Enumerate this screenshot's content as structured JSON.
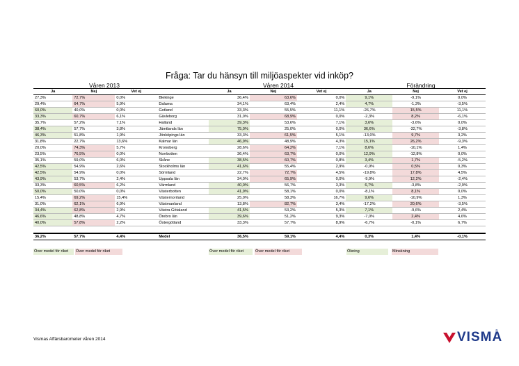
{
  "title": "Fråga: Tar du hänsyn till miljöaspekter vid inköp?",
  "groups": {
    "g1": "Våren 2013",
    "g2": "Våren 2014",
    "g3": "Förändring"
  },
  "col_headers": {
    "ja": "Ja",
    "nej": "Nej",
    "vetej": "Vet ej"
  },
  "rows": [
    {
      "a1": "27,3%",
      "a2": "72,7%",
      "a3": "0,0%",
      "name": "Blekinge",
      "b1": "36,4%",
      "b2": "63,6%",
      "b3": "0,0%",
      "c1": "9,1%",
      "c2": "-9,1%",
      "c3": "0,0%"
    },
    {
      "a1": "29,4%",
      "a2": "64,7%",
      "a3": "5,9%",
      "name": "Dalarna",
      "b1": "34,1%",
      "b2": "63,4%",
      "b3": "2,4%",
      "c1": "4,7%",
      "c2": "-1,3%",
      "c3": "-3,5%"
    },
    {
      "a1": "60,0%",
      "a2": "40,0%",
      "a3": "0,0%",
      "name": "Gotland",
      "b1": "33,3%",
      "b2": "55,5%",
      "b3": "11,1%",
      "c1": "-26,7%",
      "c2": "15,5%",
      "c3": "11,1%"
    },
    {
      "a1": "33,3%",
      "a2": "60,7%",
      "a3": "6,1%",
      "name": "Gävleborg",
      "b1": "31,0%",
      "b2": "68,9%",
      "b3": "0,0%",
      "c1": "-2,3%",
      "c2": "8,2%",
      "c3": "-6,1%"
    },
    {
      "a1": "35,7%",
      "a2": "57,2%",
      "a3": "7,1%",
      "name": "Halland",
      "b1": "39,3%",
      "b2": "53,6%",
      "b3": "7,1%",
      "c1": "3,6%",
      "c2": "-3,6%",
      "c3": "0,0%"
    },
    {
      "a1": "38,4%",
      "a2": "57,7%",
      "a3": "3,8%",
      "name": "Jämtlands län",
      "b1": "75,0%",
      "b2": "25,0%",
      "b3": "0,0%",
      "c1": "36,6%",
      "c2": "-32,7%",
      "c3": "-3,8%"
    },
    {
      "a1": "46,3%",
      "a2": "51,8%",
      "a3": "1,9%",
      "name": "Jönköpings län",
      "b1": "33,3%",
      "b2": "61,5%",
      "b3": "5,1%",
      "c1": "-13,0%",
      "c2": "9,7%",
      "c3": "3,2%"
    },
    {
      "a1": "31,8%",
      "a2": "22,7%",
      "a3": "13,6%",
      "name": "Kalmar län",
      "b1": "46,9%",
      "b2": "48,9%",
      "b3": "4,3%",
      "c1": "15,1%",
      "c2": "26,2%",
      "c3": "-9,3%"
    },
    {
      "a1": "20,0%",
      "a2": "74,3%",
      "a3": "5,7%",
      "name": "Kronoberg",
      "b1": "28,6%",
      "b2": "64,2%",
      "b3": "7,1%",
      "c1": "8,6%",
      "c2": "-10,1%",
      "c3": "1,4%"
    },
    {
      "a1": "23,5%",
      "a2": "76,5%",
      "a3": "0,0%",
      "name": "Norrbotten",
      "b1": "36,4%",
      "b2": "63,7%",
      "b3": "0,0%",
      "c1": "12,9%",
      "c2": "-12,8%",
      "c3": "0,0%"
    },
    {
      "a1": "35,1%",
      "a2": "59,0%",
      "a3": "6,0%",
      "name": "Skåne",
      "b1": "38,5%",
      "b2": "60,7%",
      "b3": "0,8%",
      "c1": "3,4%",
      "c2": "1,7%",
      "c3": "-5,2%"
    },
    {
      "a1": "42,5%",
      "a2": "54,9%",
      "a3": "2,6%",
      "name": "Stockholms län",
      "b1": "41,6%",
      "b2": "55,4%",
      "b3": "2,9%",
      "c1": "-0,9%",
      "c2": "0,5%",
      "c3": "0,3%"
    },
    {
      "a1": "42,5%",
      "a2": "54,9%",
      "a3": "0,0%",
      "name": "Sörmland",
      "b1": "22,7%",
      "b2": "72,7%",
      "b3": "4,5%",
      "c1": "-19,8%",
      "c2": "17,8%",
      "c3": "4,5%"
    },
    {
      "a1": "43,9%",
      "a2": "53,7%",
      "a3": "2,4%",
      "name": "Uppsala län",
      "b1": "34,0%",
      "b2": "65,9%",
      "b3": "0,0%",
      "c1": "-9,9%",
      "c2": "12,2%",
      "c3": "-2,4%"
    },
    {
      "a1": "33,3%",
      "a2": "60,5%",
      "a3": "6,2%",
      "name": "Värmland",
      "b1": "40,0%",
      "b2": "56,7%",
      "b3": "3,3%",
      "c1": "6,7%",
      "c2": "-3,8%",
      "c3": "-2,9%"
    },
    {
      "a1": "50,0%",
      "a2": "50,0%",
      "a3": "0,0%",
      "name": "Västerbotten",
      "b1": "41,9%",
      "b2": "58,1%",
      "b3": "0,0%",
      "c1": "-8,1%",
      "c2": "8,1%",
      "c3": "0,0%"
    },
    {
      "a1": "15,4%",
      "a2": "69,2%",
      "a3": "15,4%",
      "name": "Västernorrland",
      "b1": "25,0%",
      "b2": "58,3%",
      "b3": "16,7%",
      "c1": "9,6%",
      "c2": "-10,9%",
      "c3": "1,3%"
    },
    {
      "a1": "31,0%",
      "a2": "62,1%",
      "a3": "6,9%",
      "name": "Västmanland",
      "b1": "13,8%",
      "b2": "82,7%",
      "b3": "3,4%",
      "c1": "-17,2%",
      "c2": "20,6%",
      "c3": "-3,5%"
    },
    {
      "a1": "34,4%",
      "a2": "62,8%",
      "a3": "2,9%",
      "name": "Västra Götaland",
      "b1": "41,5%",
      "b2": "53,2%",
      "b3": "5,3%",
      "c1": "7,1%",
      "c2": "-9,6%",
      "c3": "2,4%"
    },
    {
      "a1": "46,6%",
      "a2": "48,8%",
      "a3": "4,7%",
      "name": "Örebro län",
      "b1": "39,6%",
      "b2": "51,2%",
      "b3": "9,3%",
      "c1": "-7,0%",
      "c2": "2,4%",
      "c3": "4,6%"
    },
    {
      "a1": "40,0%",
      "a2": "57,8%",
      "a3": "2,2%",
      "name": "Östergötland",
      "b1": "33,3%",
      "b2": "57,7%",
      "b3": "8,9%",
      "c1": "-6,7%",
      "c2": "-0,1%",
      "c3": "6,7%"
    }
  ],
  "highlights": {
    "g": [
      "0:c1",
      "1:c1",
      "2:a1",
      "3:a1",
      "4:b1",
      "4:c1",
      "5:a1",
      "5:b1",
      "5:c1",
      "6:a1",
      "7:b1",
      "7:c1",
      "8:c1",
      "9:c1",
      "10:b1",
      "10:c1",
      "11:a1",
      "11:b1",
      "12:a1",
      "13:a1",
      "14:b1",
      "14:c1",
      "15:a1",
      "15:b1",
      "16:c1",
      "18:a1",
      "18:b1",
      "18:c1",
      "19:a1",
      "19:b1",
      "20:a1"
    ],
    "p": [
      "0:a2",
      "0:b2",
      "1:a2",
      "2:c2",
      "3:a2",
      "3:b2",
      "3:c2",
      "6:b2",
      "6:c2",
      "7:c2",
      "8:a2",
      "8:b2",
      "9:a2",
      "9:b2",
      "10:b2",
      "10:c2",
      "11:c2",
      "12:b2",
      "12:c2",
      "13:b2",
      "13:c2",
      "14:a2",
      "15:c2",
      "16:a2",
      "17:a2",
      "17:b2",
      "17:c2",
      "18:a2",
      "19:c2",
      "20:a2"
    ]
  },
  "total": {
    "a1": "36,2%",
    "a2": "57,7%",
    "a3": "4,4%",
    "name": "Medel",
    "b1": "36,5%",
    "b2": "59,1%",
    "b3": "4,4%",
    "c1": "0,3%",
    "c2": "1,4%",
    "c3": "-0,1%"
  },
  "legend": {
    "l1": "Över medel för riket",
    "l2": "Över medel för riket",
    "l3": "Över medel för riket",
    "l4": "Över medel för riket",
    "l5": "Ökning",
    "l6": "Minskning",
    "green": "#e6efd8",
    "pink": "#f3dada"
  },
  "footer": "Vismas Affärsbarometer våren 2014",
  "logo": {
    "text": "VISMA",
    "reg": "®",
    "icon": "visma-chevron-icon",
    "color": "#1f3a8a",
    "accent": "#c8102e"
  }
}
